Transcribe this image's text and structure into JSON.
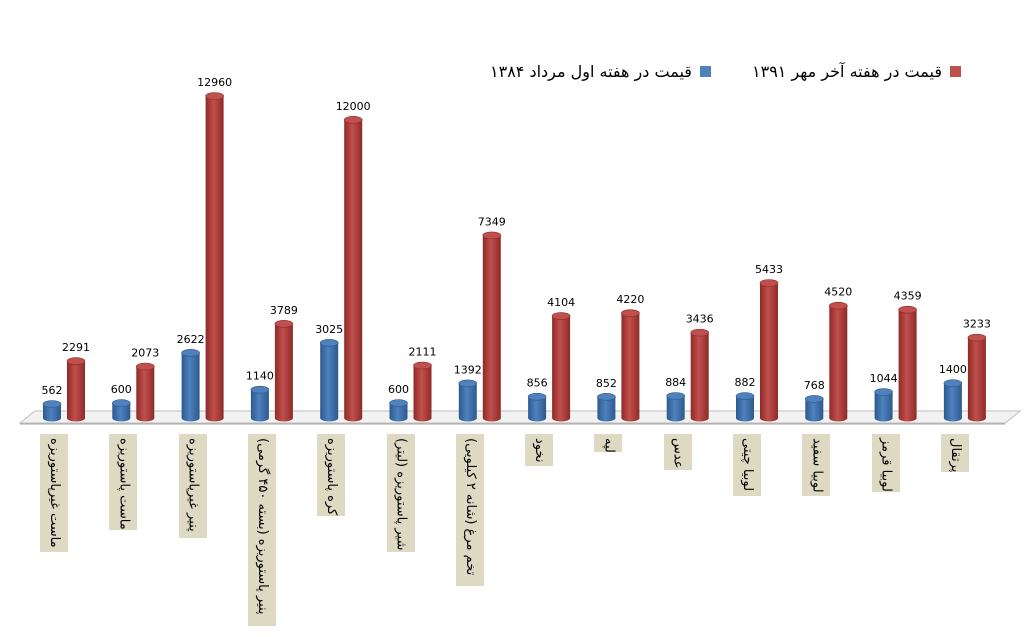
{
  "chart_data": {
    "type": "bar",
    "title": "",
    "xlabel": "",
    "ylabel": "",
    "ylim": [
      0,
      13000
    ],
    "grid": false,
    "legend_position": "top",
    "categories": [
      "ماست غیرپاستوریزه",
      "ماست پاستوریزه",
      "پنیر غیرپاستوریزه",
      "پنیر پاستوریزه (بسته ۴۵۰ گرمی)",
      "کره پاستوریزه",
      "شیر پاستوریزه (لیتر)",
      "تخم مرغ (شانه ۲ کیلویی)",
      "نخود",
      "لپه",
      "عدس",
      "لوبیا چیتی",
      "لوبیا سفید",
      "لوبیا قرمز",
      "پرتقال"
    ],
    "series": [
      {
        "name": "قیمت در هفته اول مرداد ۱۳۸۴",
        "color": "#4f81bd",
        "values": [
          562,
          600,
          2622,
          1140,
          3025,
          600,
          1392,
          856,
          852,
          884,
          882,
          768,
          1044,
          1400
        ]
      },
      {
        "name": "قیمت در هفته آخر مهر ۱۳۹۱",
        "color": "#c0504d",
        "values": [
          2291,
          2073,
          12960,
          3789,
          12000,
          2111,
          7349,
          4104,
          4220,
          3436,
          5433,
          4520,
          4359,
          3233
        ]
      }
    ]
  }
}
